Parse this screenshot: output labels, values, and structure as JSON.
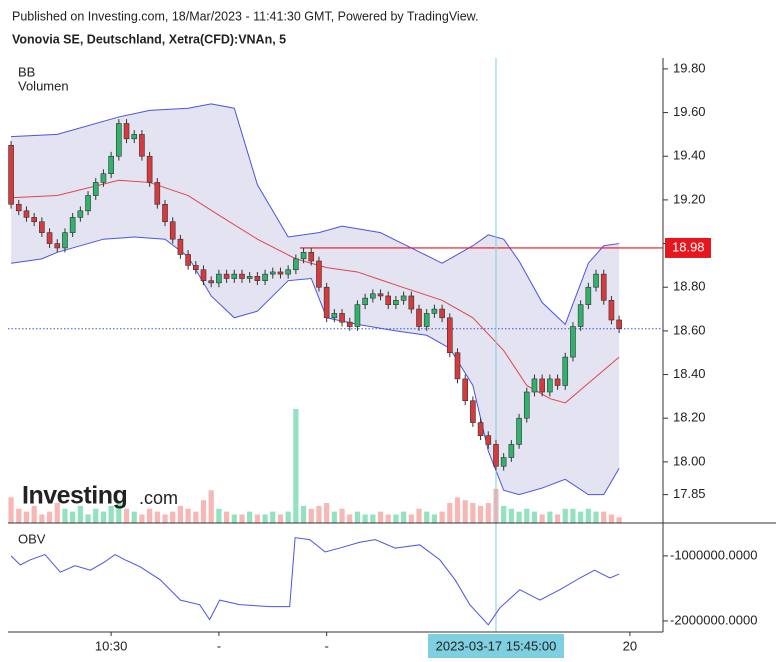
{
  "header": {
    "published": "Published on Investing.com, 18/Mar/2023 - 11:41:30 GMT, Powered by TradingView.",
    "symbol": "Vonovia SE, Deutschland, Xetra(CFD):VNAn, 5"
  },
  "chart_data": {
    "type": "candlestick",
    "logo": [
      "Investing",
      ".com"
    ],
    "up_color": "#2fb26c",
    "down_color": "#d63a3a",
    "candles": {
      "open": [
        19.45,
        19.18,
        19.15,
        19.12,
        19.1,
        19.05,
        19.0,
        18.98,
        19.05,
        19.12,
        19.15,
        19.22,
        19.28,
        19.32,
        19.4,
        19.55,
        19.48,
        19.5,
        19.4,
        19.28,
        19.18,
        19.1,
        19.02,
        18.95,
        18.9,
        18.88,
        18.83,
        18.82,
        18.86,
        18.84,
        18.86,
        18.84,
        18.85,
        18.83,
        18.86,
        18.87,
        18.86,
        18.88,
        18.93,
        18.96,
        18.92,
        18.8,
        18.66,
        18.68,
        18.64,
        18.62,
        18.72,
        18.75,
        18.77,
        18.76,
        18.72,
        18.74,
        18.76,
        18.7,
        18.62,
        18.68,
        18.7,
        18.66,
        18.5,
        18.38,
        18.28,
        18.18,
        18.12,
        18.08,
        17.98,
        18.02,
        18.08,
        18.2,
        18.32,
        18.38,
        18.32,
        18.38,
        18.35,
        18.48,
        18.62,
        18.72,
        18.8,
        18.86,
        18.74,
        18.65
      ],
      "high": [
        19.47,
        19.2,
        19.17,
        19.14,
        19.12,
        19.07,
        19.02,
        19.07,
        19.14,
        19.17,
        19.24,
        19.3,
        19.34,
        19.42,
        19.57,
        19.57,
        19.52,
        19.52,
        19.42,
        19.3,
        19.2,
        19.12,
        19.04,
        18.97,
        18.92,
        18.9,
        18.85,
        18.88,
        18.88,
        18.88,
        18.88,
        18.87,
        18.87,
        18.88,
        18.89,
        18.89,
        18.9,
        18.95,
        18.98,
        18.98,
        18.94,
        18.82,
        18.7,
        18.7,
        18.66,
        18.74,
        18.77,
        18.79,
        18.79,
        18.78,
        18.76,
        18.78,
        18.78,
        18.72,
        18.7,
        18.72,
        18.72,
        18.68,
        18.52,
        18.4,
        18.3,
        18.2,
        18.14,
        18.1,
        18.04,
        18.1,
        18.22,
        18.34,
        18.4,
        18.4,
        18.4,
        18.4,
        18.5,
        18.64,
        18.74,
        18.82,
        18.88,
        18.88,
        18.76,
        18.67
      ],
      "low": [
        19.16,
        19.13,
        19.1,
        19.08,
        19.03,
        18.98,
        18.96,
        18.96,
        19.03,
        19.1,
        19.13,
        19.2,
        19.26,
        19.3,
        19.38,
        19.46,
        19.46,
        19.38,
        19.26,
        19.16,
        19.08,
        19.0,
        18.93,
        18.88,
        18.86,
        18.81,
        18.8,
        18.8,
        18.82,
        18.82,
        18.82,
        18.82,
        18.81,
        18.81,
        18.84,
        18.84,
        18.84,
        18.86,
        18.91,
        18.9,
        18.78,
        18.64,
        18.64,
        18.62,
        18.6,
        18.6,
        18.7,
        18.73,
        18.74,
        18.7,
        18.7,
        18.72,
        18.68,
        18.6,
        18.6,
        18.66,
        18.64,
        18.48,
        18.36,
        18.26,
        18.16,
        18.1,
        18.06,
        17.96,
        17.96,
        18.0,
        18.06,
        18.18,
        18.3,
        18.3,
        18.3,
        18.33,
        18.33,
        18.46,
        18.6,
        18.7,
        18.78,
        18.72,
        18.63,
        18.59
      ],
      "close": [
        19.18,
        19.15,
        19.12,
        19.1,
        19.05,
        19.0,
        18.98,
        19.05,
        19.12,
        19.15,
        19.22,
        19.28,
        19.32,
        19.4,
        19.55,
        19.48,
        19.5,
        19.4,
        19.28,
        19.18,
        19.1,
        19.02,
        18.95,
        18.9,
        18.88,
        18.83,
        18.82,
        18.86,
        18.84,
        18.86,
        18.84,
        18.85,
        18.83,
        18.86,
        18.87,
        18.86,
        18.88,
        18.93,
        18.96,
        18.92,
        18.8,
        18.66,
        18.68,
        18.64,
        18.62,
        18.72,
        18.75,
        18.77,
        18.76,
        18.72,
        18.74,
        18.76,
        18.7,
        18.62,
        18.68,
        18.7,
        18.66,
        18.5,
        18.38,
        18.28,
        18.18,
        18.12,
        18.08,
        17.98,
        18.02,
        18.08,
        18.2,
        18.32,
        18.38,
        18.32,
        18.38,
        18.35,
        18.48,
        18.62,
        18.72,
        18.8,
        18.86,
        18.74,
        18.65,
        18.61
      ]
    },
    "volume": {
      "name": "Volumen",
      "up_color": "#93e2bf",
      "down_color": "#f6b7b5",
      "values": [
        9000,
        5000,
        4000,
        6000,
        3000,
        4000,
        7000,
        5000,
        4000,
        6000,
        3000,
        5000,
        4000,
        6000,
        7000,
        5000,
        4000,
        3000,
        5000,
        4000,
        3000,
        4000,
        6000,
        5000,
        4000,
        8000,
        11500,
        5000,
        4000,
        3000,
        3000,
        4000,
        3000,
        3000,
        4000,
        3000,
        4000,
        40000,
        6000,
        5000,
        6000,
        7000,
        4000,
        5000,
        3000,
        4000,
        3000,
        3000,
        4000,
        3000,
        3000,
        4000,
        3000,
        5000,
        4000,
        3000,
        4000,
        7000,
        9000,
        8000,
        7000,
        6000,
        7000,
        12000,
        6000,
        5000,
        4000,
        5000,
        4000,
        3000,
        4000,
        3000,
        5000,
        5000,
        4000,
        5000,
        4000,
        4000,
        3000,
        2000
      ]
    },
    "bands": {
      "name": "BB",
      "fill": "#e3e3f1",
      "series": [
        {
          "color": "#4a55e0",
          "x": [
            0,
            6,
            14,
            18,
            23,
            26,
            29,
            32,
            36,
            40,
            43,
            48,
            52,
            56,
            60,
            62,
            64,
            66,
            69,
            72,
            75,
            77,
            79
          ],
          "values": [
            19.49,
            19.5,
            19.58,
            19.61,
            19.62,
            19.64,
            19.62,
            19.27,
            19.03,
            19.05,
            19.08,
            19.05,
            18.98,
            18.91,
            18.99,
            19.04,
            19.02,
            18.92,
            18.73,
            18.63,
            18.91,
            18.99,
            19.0
          ]
        },
        {
          "color": "#e0474a",
          "x": [
            0,
            6,
            14,
            18,
            23,
            27,
            32,
            37,
            41,
            45,
            50,
            56,
            60,
            64,
            67,
            70,
            72,
            75,
            79
          ],
          "values": [
            19.21,
            19.22,
            19.29,
            19.28,
            19.22,
            19.13,
            19.02,
            18.93,
            18.89,
            18.87,
            18.81,
            18.74,
            18.66,
            18.51,
            18.35,
            18.29,
            18.27,
            18.36,
            18.48
          ]
        },
        {
          "color": "#4a55e0",
          "x": [
            0,
            4,
            6,
            12,
            16,
            20,
            23,
            26,
            29,
            32,
            36,
            39,
            41,
            45,
            50,
            54,
            57,
            60,
            62,
            64,
            66,
            69,
            72,
            75,
            77,
            79
          ],
          "values": [
            18.91,
            18.93,
            18.96,
            19.02,
            19.03,
            19.02,
            18.94,
            18.76,
            18.66,
            18.69,
            18.83,
            18.84,
            18.66,
            18.63,
            18.6,
            18.58,
            18.52,
            18.35,
            18.05,
            17.87,
            17.85,
            17.88,
            17.92,
            17.85,
            17.85,
            17.97
          ]
        }
      ]
    },
    "ylim": [
      17.72,
      19.85
    ],
    "yticks": [
      17.85,
      {
        "value": 18,
        "label": "18.00"
      },
      {
        "value": 18.2,
        "label": "18.20"
      },
      {
        "value": 18.4,
        "label": "18.40"
      },
      {
        "value": 18.6,
        "label": "18.60"
      },
      {
        "value": 18.8,
        "label": "18.80"
      },
      {
        "value": 19,
        "label": "19.00"
      },
      {
        "value": 19.2,
        "label": "19.20"
      },
      {
        "value": 19.4,
        "label": "19.40"
      },
      {
        "value": 19.6,
        "label": "19.60"
      },
      {
        "value": 19.8,
        "label": "19.80"
      }
    ],
    "xlim": [
      -0.4,
      84.7
    ],
    "xticks": [
      {
        "value": 13,
        "label": "10:30"
      },
      {
        "value": 27,
        "label": "-"
      },
      {
        "value": 41,
        "label": "-"
      },
      {
        "value": 80.4,
        "label": "20"
      }
    ],
    "level": {
      "value": 18.98,
      "label": "18.98",
      "color": "#e5161c"
    },
    "crosshair": {
      "x": 63,
      "label": "2023-03-17 15:45:00"
    },
    "obv": {
      "name": "OBV",
      "color": "#4a55e0",
      "ylim": [
        -2170000,
        -510000
      ],
      "yticks": [
        {
          "value": -1000000,
          "label": "-1000000.0000"
        },
        {
          "value": -2000000,
          "label": "-2000000.0000"
        }
      ],
      "x": [
        0,
        1.2,
        2.5,
        4.4,
        6.4,
        8.3,
        10.3,
        12.2,
        13.5,
        14.8,
        16.8,
        19.4,
        22,
        24.5,
        25.8,
        27.1,
        29.7,
        33.6,
        36.2,
        36.9,
        38.8,
        40.8,
        42.7,
        45.3,
        47.3,
        49.9,
        53.1,
        55.7,
        57.7,
        59.6,
        62,
        63.5,
        66.1,
        68.7,
        71.3,
        73.9,
        75.8,
        77.8,
        79
      ],
      "values": [
        -1000000,
        -1140000,
        -1060000,
        -980000,
        -1250000,
        -1150000,
        -1220000,
        -1090000,
        -980000,
        -1060000,
        -1170000,
        -1370000,
        -1680000,
        -1750000,
        -1980000,
        -1680000,
        -1750000,
        -1780000,
        -1780000,
        -720000,
        -750000,
        -940000,
        -880000,
        -790000,
        -750000,
        -880000,
        -830000,
        -1060000,
        -1370000,
        -1750000,
        -2060000,
        -1800000,
        -1520000,
        -1680000,
        -1520000,
        -1340000,
        -1220000,
        -1340000,
        -1280000
      ]
    }
  }
}
